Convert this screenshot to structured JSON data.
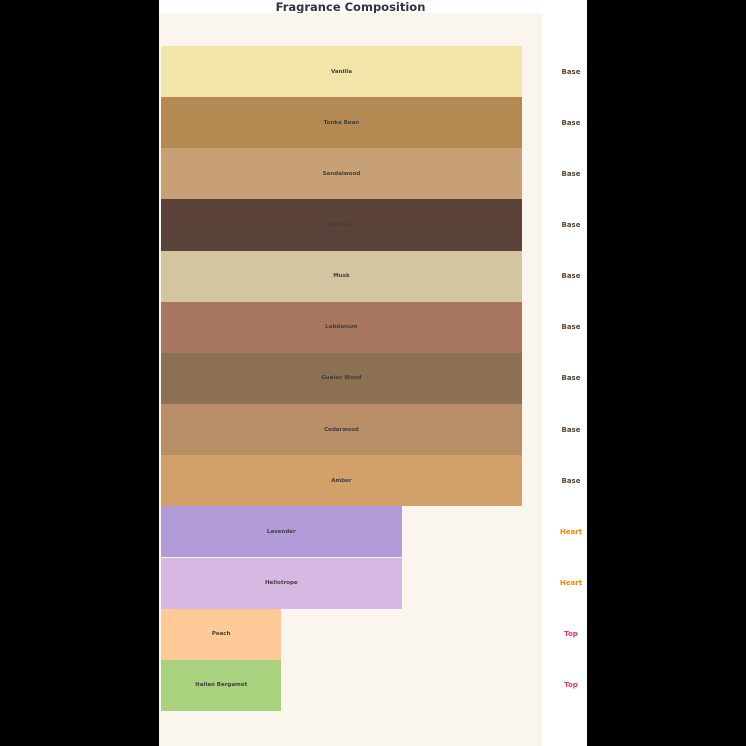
{
  "title": "Fragrance Composition",
  "chart_data": {
    "type": "bar",
    "orientation": "horizontal",
    "title": "Fragrance Composition",
    "xlabel": "",
    "ylabel": "",
    "grid": false,
    "legend": false,
    "axes_visible": false,
    "xlim": [
      0,
      3.17
    ],
    "group_values": {
      "Base": 3,
      "Heart": 2,
      "Top": 1
    },
    "bars": [
      {
        "label": "Vanilla",
        "group": "Base",
        "value": 3,
        "color": "#f2e5aa"
      },
      {
        "label": "Tonka Bean",
        "group": "Base",
        "value": 3,
        "color": "#b58a52"
      },
      {
        "label": "Sandalwood",
        "group": "Base",
        "value": 3,
        "color": "#c7a175"
      },
      {
        "label": "Patchouli",
        "group": "Base",
        "value": 3,
        "color": "#5b4238"
      },
      {
        "label": "Musk",
        "group": "Base",
        "value": 3,
        "color": "#d4c5a1"
      },
      {
        "label": "Labdanum",
        "group": "Base",
        "value": 3,
        "color": "#a97660"
      },
      {
        "label": "Guaiac Wood",
        "group": "Base",
        "value": 3,
        "color": "#8c7052"
      },
      {
        "label": "Cedarwood",
        "group": "Base",
        "value": 3,
        "color": "#b88e66"
      },
      {
        "label": "Amber",
        "group": "Base",
        "value": 3,
        "color": "#d2a069"
      },
      {
        "label": "Lavender",
        "group": "Heart",
        "value": 2,
        "color": "#b19cd9"
      },
      {
        "label": "Heliotrope",
        "group": "Heart",
        "value": 2,
        "color": "#d7b8e2"
      },
      {
        "label": "Peach",
        "group": "Top",
        "value": 1,
        "color": "#ffca98"
      },
      {
        "label": "Italian Bergamot",
        "group": "Top",
        "value": 1,
        "color": "#a8d27e"
      }
    ],
    "group_label_colors": {
      "Base": "#5a4632",
      "Heart": "#f08c00",
      "Top": "#e3396e"
    }
  },
  "colors": {
    "outer_bg": "#000000",
    "figure_bg": "#ffffff",
    "plot_bg": "#faf6ee",
    "bar_label_text": "#3f3f3f",
    "title_text": "#32323a"
  }
}
